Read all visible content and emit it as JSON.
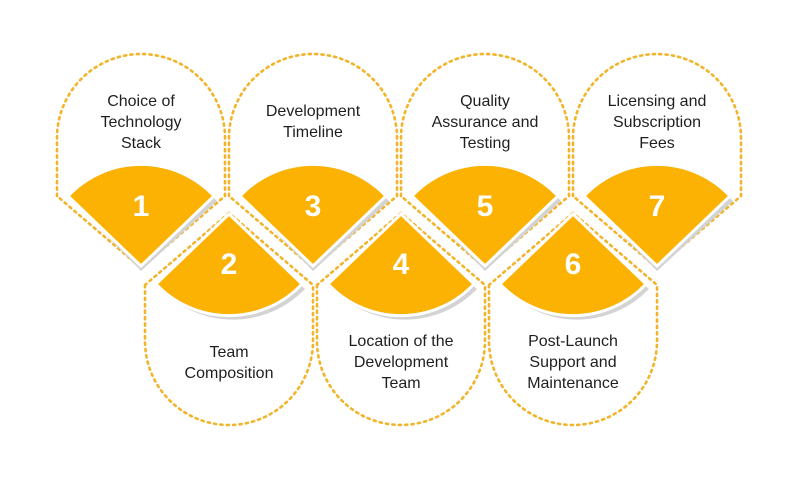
{
  "diagram": {
    "accent_color": "#fbb202",
    "outline_color": "#f2b42a",
    "items": [
      {
        "number": "1",
        "lines": [
          "Choice of",
          "Technology",
          "Stack"
        ]
      },
      {
        "number": "2",
        "lines": [
          "Team",
          "Composition"
        ]
      },
      {
        "number": "3",
        "lines": [
          "Development",
          "Timeline"
        ]
      },
      {
        "number": "4",
        "lines": [
          "Location of the",
          "Development",
          "Team"
        ]
      },
      {
        "number": "5",
        "lines": [
          "Quality",
          "Assurance and",
          "Testing"
        ]
      },
      {
        "number": "6",
        "lines": [
          "Post-Launch",
          "Support and",
          "Maintenance"
        ]
      },
      {
        "number": "7",
        "lines": [
          "Licensing and",
          "Subscription",
          "Fees"
        ]
      }
    ]
  }
}
